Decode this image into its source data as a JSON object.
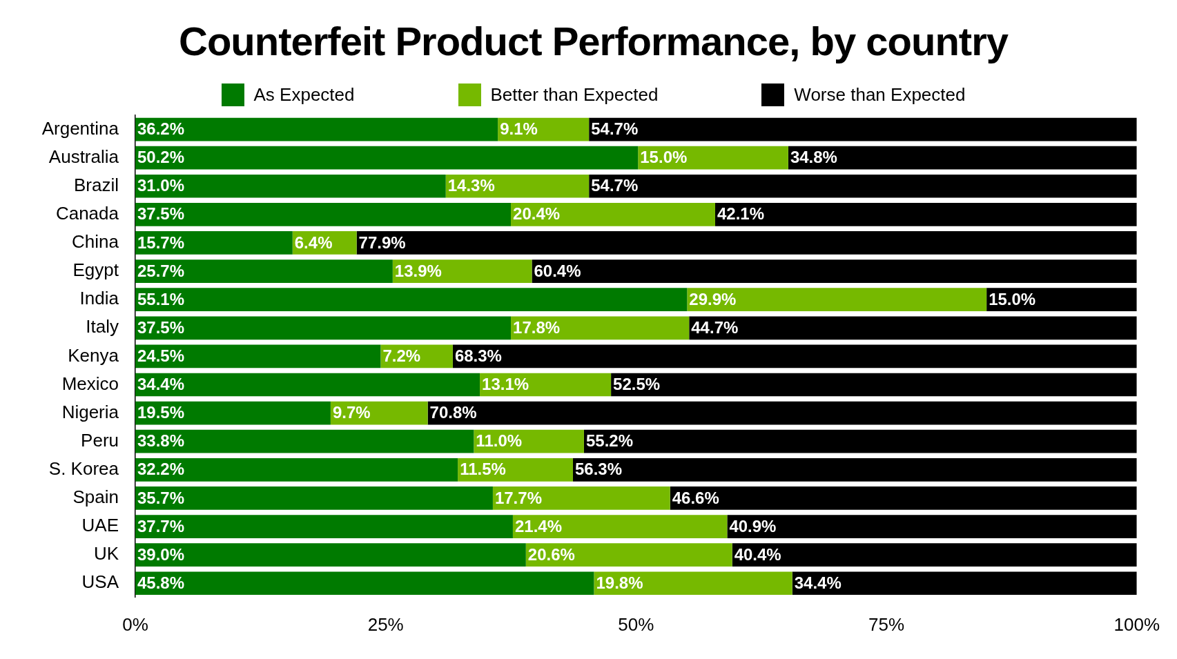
{
  "chart_data": {
    "type": "bar",
    "orientation": "horizontal",
    "stacked": true,
    "title": "Counterfeit Product Performance, by country",
    "categories": [
      "Argentina",
      "Australia",
      "Brazil",
      "Canada",
      "China",
      "Egypt",
      "India",
      "Italy",
      "Kenya",
      "Mexico",
      "Nigeria",
      "Peru",
      "S. Korea",
      "Spain",
      "UAE",
      "UK",
      "USA"
    ],
    "series": [
      {
        "name": "As Expected",
        "color": "#007a00",
        "values": [
          36.2,
          50.2,
          31.0,
          37.5,
          15.7,
          25.7,
          55.1,
          37.5,
          24.5,
          34.4,
          19.5,
          33.8,
          32.2,
          35.7,
          37.7,
          39.0,
          45.8
        ],
        "value_labels": [
          "36.2%",
          "50.2%",
          "31.0%",
          "37.5%",
          "15.7%",
          "25.7%",
          "55.1%",
          "37.5%",
          "24.5%",
          "34.4%",
          "19.5%",
          "33.8%",
          "32.2%",
          "35.7%",
          "37.7%",
          "39.0%",
          "45.8%"
        ]
      },
      {
        "name": "Better than Expected",
        "color": "#76b900",
        "values": [
          9.1,
          15.0,
          14.3,
          20.4,
          6.4,
          13.9,
          29.9,
          17.8,
          7.2,
          13.1,
          9.7,
          11.0,
          11.5,
          17.7,
          21.4,
          20.6,
          19.8
        ],
        "value_labels": [
          "9.1%",
          "15.0%",
          "14.3%",
          "20.4%",
          "6.4%",
          "13.9%",
          "29.9%",
          "17.8%",
          "7.2%",
          "13.1%",
          "9.7%",
          "11.0%",
          "11.5%",
          "17.7%",
          "21.4%",
          "20.6%",
          "19.8%"
        ]
      },
      {
        "name": "Worse than Expected",
        "color": "#000000",
        "values": [
          54.7,
          34.8,
          54.7,
          42.1,
          77.9,
          60.4,
          15.0,
          44.7,
          68.3,
          52.5,
          70.8,
          55.2,
          56.3,
          46.6,
          40.9,
          40.4,
          34.4
        ],
        "value_labels": [
          "54.7%",
          "34.8%",
          "54.7%",
          "42.1%",
          "77.9%",
          "60.4%",
          "15.0%",
          "44.7%",
          "68.3%",
          "52.5%",
          "70.8%",
          "55.2%",
          "56.3%",
          "46.6%",
          "40.9%",
          "40.4%",
          "34.4%"
        ]
      }
    ],
    "xlim": [
      0,
      100
    ],
    "xticks": [
      {
        "value": 0,
        "label": "0%"
      },
      {
        "value": 25,
        "label": "25%"
      },
      {
        "value": 50,
        "label": "50%"
      },
      {
        "value": 75,
        "label": "75%"
      },
      {
        "value": 100,
        "label": "100%"
      }
    ],
    "grid": false,
    "legend": "top"
  }
}
